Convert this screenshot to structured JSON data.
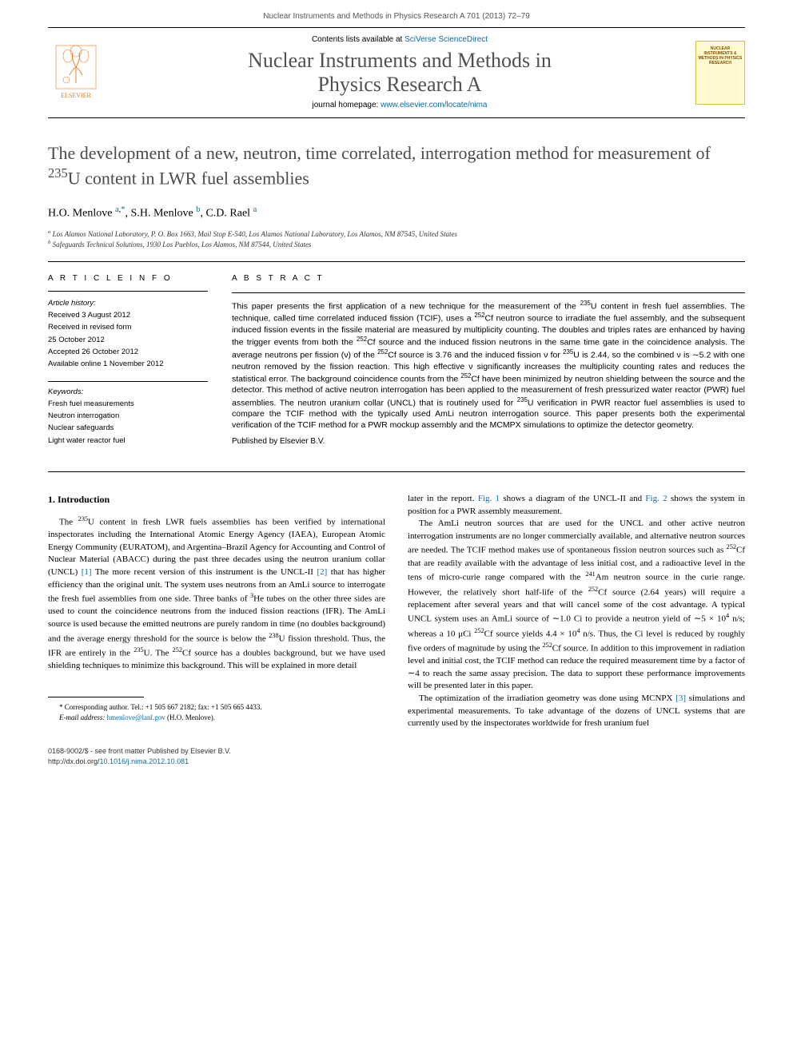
{
  "header": {
    "citation": "Nuclear Instruments and Methods in Physics Research A 701 (2013) 72–79"
  },
  "banner": {
    "contents_prefix": "Contents lists available at ",
    "contents_link": "SciVerse ScienceDirect",
    "journal_title_line1": "Nuclear Instruments and Methods in",
    "journal_title_line2": "Physics Research A",
    "homepage_prefix": "journal homepage: ",
    "homepage_link": "www.elsevier.com/locate/nima",
    "elsevier_label": "ELSEVIER",
    "cover_text": "NUCLEAR INSTRUMENTS & METHODS IN PHYSICS RESEARCH"
  },
  "article": {
    "title_html": "The development of a new, neutron, time correlated, interrogation method for measurement of <sup>235</sup>U content in LWR fuel assemblies",
    "authors_html": "H.O. Menlove <sup><a href='#'>a</a>,<a href='#'>*</a></sup>, S.H. Menlove <sup><a href='#'>b</a></sup>, C.D. Rael <sup><a href='#'>a</a></sup>",
    "affiliations": {
      "a": "Los Alamos National Laboratory, P. O. Box 1663, Mail Stop E-540, Los Alamos National Laboratory, Los Alamos, NM 87545, United States",
      "b": "Safeguards Technical Solutions, 1930 Los Pueblos, Los Alamos, NM 87544, United States"
    }
  },
  "info": {
    "heading": "A R T I C L E   I N F O",
    "history_label": "Article history:",
    "received": "Received 3 August 2012",
    "revised1": "Received in revised form",
    "revised2": "25 October 2012",
    "accepted": "Accepted 26 October 2012",
    "online": "Available online 1 November 2012",
    "keywords_label": "Keywords:",
    "keywords": [
      "Fresh fuel measurements",
      "Neutron interrogation",
      "Nuclear safeguards",
      "Light water reactor fuel"
    ]
  },
  "abstract": {
    "heading": "A B S T R A C T",
    "text_html": "This paper presents the first application of a new technique for the measurement of the <sup>235</sup>U content in fresh fuel assemblies. The technique, called time correlated induced fission (TCIF), uses a <sup>252</sup>Cf neutron source to irradiate the fuel assembly, and the subsequent induced fission events in the fissile material are measured by multiplicity counting. The doubles and triples rates are enhanced by having the trigger events from both the <sup>252</sup>Cf source and the induced fission neutrons in the same time gate in the coincidence analysis. The average neutrons per fission (ν) of the <sup>252</sup>Cf source is 3.76 and the induced fission ν for <sup>235</sup>U is 2.44, so the combined ν is ∼5.2 with one neutron removed by the fission reaction. This high effective ν significantly increases the multiplicity counting rates and reduces the statistical error. The background coincidence counts from the <sup>252</sup>Cf have been minimized by neutron shielding between the source and the detector. This method of active neutron interrogation has been applied to the measurement of fresh pressurized water reactor (PWR) fuel assemblies. The neutron uranium collar (UNCL) that is routinely used for <sup>235</sup>U verification in PWR reactor fuel assemblies is used to compare the TCIF method with the typically used AmLi neutron interrogation source. This paper presents both the experimental verification of the TCIF method for a PWR mockup assembly and the MCMPX simulations to optimize the detector geometry.",
    "publisher": "Published by Elsevier B.V."
  },
  "body": {
    "section_heading": "1. Introduction",
    "col1_p1_html": "The <sup>235</sup>U content in fresh LWR fuels assemblies has been verified by international inspectorates including the International Atomic Energy Agency (IAEA), European Atomic Energy Community (EURATOM), and Argentina–Brazil Agency for Accounting and Control of Nuclear Material (ABACC) during the past three decades using the neutron uranium collar (UNCL) <a href='#'>[1]</a> The more recent version of this instrument is the UNCL-II <a href='#'>[2]</a> that has higher efficiency than the original unit. The system uses neutrons from an AmLi source to interrogate the fresh fuel assemblies from one side. Three banks of <sup>3</sup>He tubes on the other three sides are used to count the coincidence neutrons from the induced fission reactions (IFR). The AmLi source is used because the emitted neutrons are purely random in time (no doubles background) and the average energy threshold for the source is below the <sup>238</sup>U fission threshold. Thus, the IFR are entirely in the <sup>235</sup>U. The <sup>252</sup>Cf source has a doubles background, but we have used shielding techniques to minimize this background. This will be explained in more detail",
    "col2_p1_html": "later in the report. <a href='#'>Fig. 1</a> shows a diagram of the UNCL-II and <a href='#'>Fig. 2</a> shows the system in position for a PWR assembly measurement.",
    "col2_p2_html": "The AmLi neutron sources that are used for the UNCL and other active neutron interrogation instruments are no longer commercially available, and alternative neutron sources are needed. The TCIF method makes use of spontaneous fission neutron sources such as <sup>252</sup>Cf that are readily available with the advantage of less initial cost, and a radioactive level in the tens of micro-curie range compared with the <sup>241</sup>Am neutron source in the curie range. However, the relatively short half-life of the <sup>252</sup>Cf source (2.64 years) will require a replacement after several years and that will cancel some of the cost advantage. A typical UNCL system uses an AmLi source of ∼1.0 Ci to provide a neutron yield of ∼5 × 10<sup>4</sup> n/s; whereas a 10 μCi <sup>252</sup>Cf source yields 4.4 × 10<sup>4</sup> n/s. Thus, the Ci level is reduced by roughly five orders of magnitude by using the <sup>252</sup>Cf source. In addition to this improvement in radiation level and initial cost, the TCIF method can reduce the required measurement time by a factor of ∼4 to reach the same assay precision. The data to support these performance improvements will be presented later in this paper.",
    "col2_p3_html": "The optimization of the irradiation geometry was done using MCNPX <a href='#'>[3]</a> simulations and experimental measurements. To take advantage of the dozens of UNCL systems that are currently used by the inspectorates worldwide for fresh uranium fuel"
  },
  "footnote": {
    "corr": "* Corresponding author. Tel.: +1 505 667 2182; fax: +1 505 665 4433.",
    "email_label": "E-mail address:",
    "email": "hmenlove@lanl.gov",
    "email_suffix": "(H.O. Menlove)."
  },
  "bottom": {
    "issn": "0168-9002/$ - see front matter Published by Elsevier B.V.",
    "doi_prefix": "http://dx.doi.org/",
    "doi": "10.1016/j.nima.2012.10.081"
  },
  "colors": {
    "link": "#0a6aa1",
    "heading_gray": "#4a4a4a",
    "elsevier_orange": "#e67817"
  }
}
